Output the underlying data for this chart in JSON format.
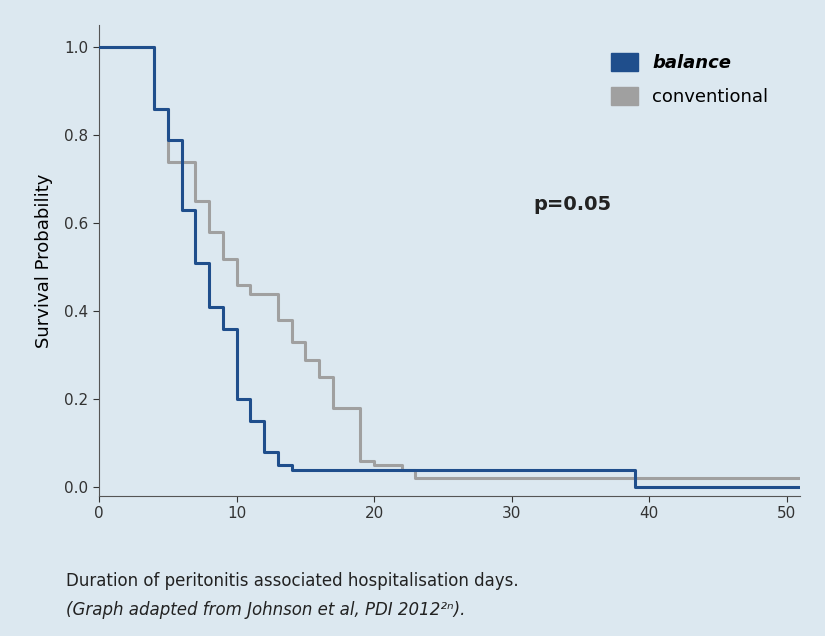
{
  "background_color": "#dce8f0",
  "plot_bg_color": "#dce8f0",
  "title": "",
  "ylabel": "Survival Probability",
  "xlabel": "",
  "xlim": [
    0,
    51
  ],
  "ylim": [
    -0.02,
    1.05
  ],
  "xticks": [
    0,
    10,
    20,
    30,
    40,
    50
  ],
  "yticks": [
    0.0,
    0.2,
    0.4,
    0.6,
    0.8,
    1.0
  ],
  "balance_color": "#1f4e8c",
  "conventional_color": "#a0a0a0",
  "p_value_text": "p=0.05",
  "legend_balance": "balance",
  "legend_conventional": "conventional",
  "caption_line1": "Duration of peritonitis associated hospitalisation days.",
  "caption_line2": "(Graph adapted from Johnson et al, PDI 2012²ⁿ).",
  "balance_x": [
    0,
    1,
    2,
    3,
    4,
    4,
    5,
    5,
    6,
    6,
    7,
    7,
    8,
    8,
    9,
    9,
    10,
    10,
    11,
    11,
    12,
    12,
    13,
    13,
    14,
    14,
    15,
    15,
    16,
    16,
    17,
    17,
    18,
    18,
    39,
    39,
    51
  ],
  "balance_y": [
    1.0,
    1.0,
    1.0,
    1.0,
    0.97,
    0.86,
    0.86,
    0.79,
    0.79,
    0.63,
    0.63,
    0.51,
    0.51,
    0.41,
    0.41,
    0.36,
    0.36,
    0.2,
    0.2,
    0.15,
    0.15,
    0.08,
    0.08,
    0.05,
    0.05,
    0.04,
    0.04,
    0.04,
    0.04,
    0.04,
    0.04,
    0.04,
    0.04,
    0.04,
    0.04,
    0.0,
    0.0
  ],
  "conventional_x": [
    0,
    1,
    2,
    3,
    4,
    4,
    5,
    5,
    6,
    6,
    7,
    7,
    8,
    8,
    9,
    9,
    10,
    10,
    11,
    11,
    12,
    12,
    13,
    13,
    14,
    14,
    15,
    15,
    16,
    16,
    17,
    17,
    18,
    18,
    19,
    19,
    20,
    20,
    21,
    21,
    22,
    22,
    23,
    23,
    24,
    24,
    25,
    25,
    26,
    26,
    27,
    27,
    28,
    28,
    51
  ],
  "conventional_y": [
    1.0,
    1.0,
    1.0,
    1.0,
    1.0,
    0.86,
    0.86,
    0.74,
    0.74,
    0.74,
    0.74,
    0.65,
    0.65,
    0.58,
    0.58,
    0.52,
    0.52,
    0.46,
    0.46,
    0.44,
    0.44,
    0.44,
    0.44,
    0.38,
    0.38,
    0.33,
    0.33,
    0.29,
    0.29,
    0.25,
    0.25,
    0.18,
    0.18,
    0.18,
    0.18,
    0.06,
    0.06,
    0.05,
    0.05,
    0.05,
    0.05,
    0.04,
    0.04,
    0.02,
    0.02,
    0.02,
    0.02,
    0.02,
    0.02,
    0.02,
    0.02,
    0.02,
    0.02,
    0.02,
    0.02
  ]
}
